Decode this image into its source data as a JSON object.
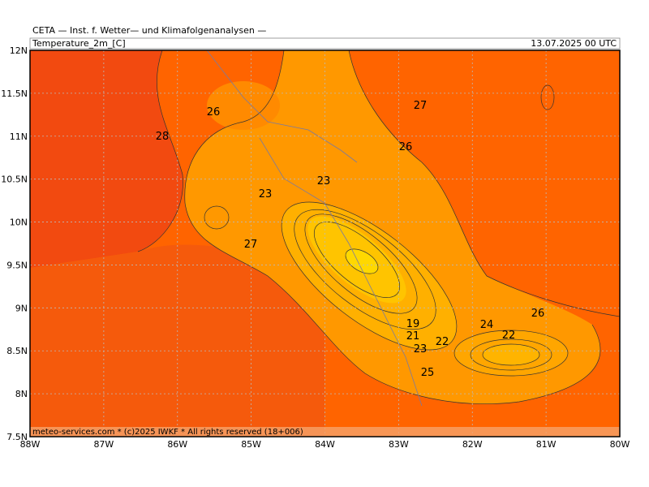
{
  "header": {
    "title": "CETA — Inst. f. Wetter— und Klimafolgenanalysen —",
    "field": "Temperature_2m_[C]",
    "valid_time": "13.07.2025 00 UTC"
  },
  "map": {
    "lon_labels": [
      "88W",
      "87W",
      "86W",
      "85W",
      "84W",
      "83W",
      "82W",
      "81W",
      "80W"
    ],
    "lat_labels": [
      "12N",
      "11.5N",
      "11N",
      "10.5N",
      "10N",
      "9.5N",
      "9N",
      "8.5N",
      "8N",
      "7.5N"
    ],
    "contour_labels": [
      28,
      26,
      27,
      26,
      23,
      23,
      27,
      19,
      21,
      22,
      23,
      24,
      26,
      22,
      25
    ],
    "footer": "meteo-services.com * (c)2025 IWKF * All rights reserved (18+006)"
  }
}
